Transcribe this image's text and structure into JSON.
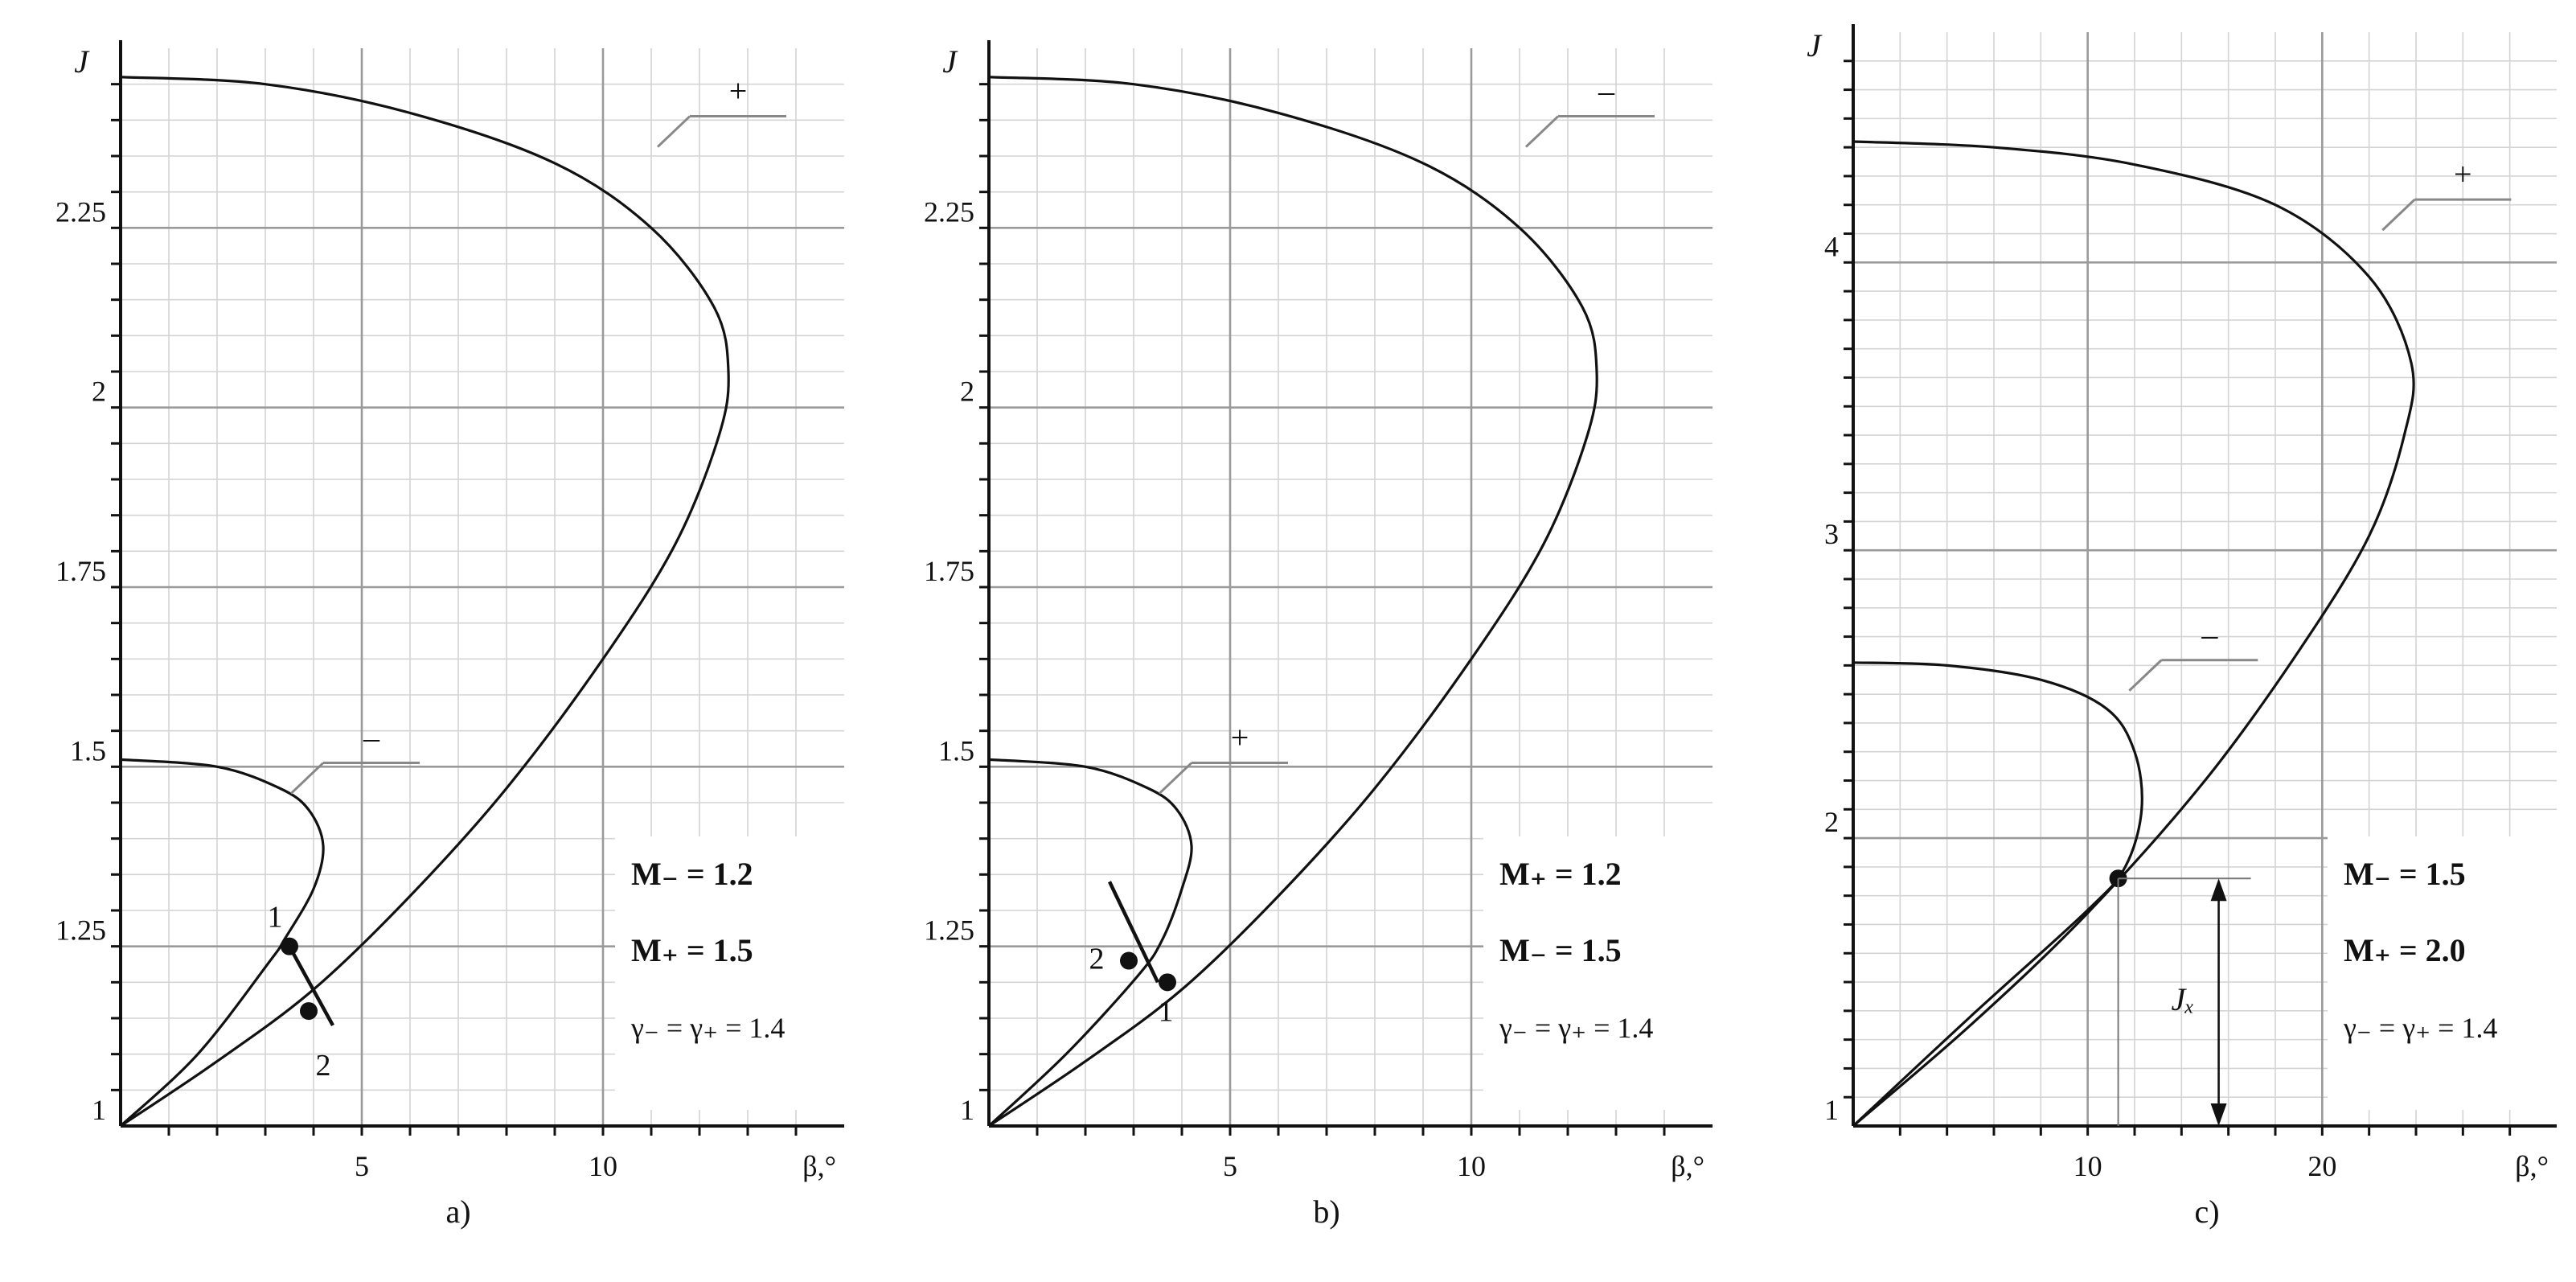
{
  "chart_data": [
    {
      "type": "line",
      "panel_label": "a)",
      "ylabel": "J",
      "xlabel": "β,°",
      "xlim": [
        0,
        15
      ],
      "ylim": [
        1,
        2.5
      ],
      "xticks": [
        5,
        10
      ],
      "yticks": [
        1,
        1.25,
        1.5,
        1.75,
        2,
        2.25
      ],
      "ytick_labels": [
        "1",
        "1.25",
        "1.5",
        "1.75",
        "2",
        "2.25"
      ],
      "series": [
        {
          "name": "+",
          "x": [
            0,
            2.0,
            4.0,
            6.0,
            8.0,
            10.0,
            11.5,
            12.4,
            12.6,
            12.3,
            11.0,
            9.0,
            6.0,
            3.0,
            0
          ],
          "y": [
            1.0,
            1.09,
            1.19,
            1.32,
            1.47,
            1.65,
            1.81,
            1.96,
            2.05,
            2.14,
            2.25,
            2.34,
            2.41,
            2.45,
            2.46
          ]
        },
        {
          "name": "–",
          "x": [
            0,
            1.6,
            3.1,
            3.4,
            4.0,
            4.2,
            3.9,
            3.3,
            2.0,
            0
          ],
          "y": [
            1.0,
            1.1,
            1.23,
            1.26,
            1.33,
            1.39,
            1.44,
            1.47,
            1.5,
            1.51
          ]
        },
        {
          "name": "",
          "x": [
            3.5,
            4.4
          ],
          "y": [
            1.25,
            1.14
          ]
        }
      ],
      "points": [
        {
          "label": "1",
          "x": 3.5,
          "y": 1.25
        },
        {
          "label": "2",
          "x": 3.9,
          "y": 1.16
        }
      ],
      "curve_tags": [
        {
          "text": "+",
          "x": 12.8,
          "y": 2.43
        },
        {
          "text": "–",
          "x": 5.2,
          "y": 1.53
        }
      ],
      "params": [
        "M₋ = 1.2",
        "M₊ = 1.5",
        "γ₋ = γ₊ = 1.4"
      ]
    },
    {
      "type": "line",
      "panel_label": "b)",
      "ylabel": "J",
      "xlabel": "β,°",
      "xlim": [
        0,
        15
      ],
      "ylim": [
        1,
        2.5
      ],
      "xticks": [
        5,
        10
      ],
      "yticks": [
        1,
        1.25,
        1.5,
        1.75,
        2,
        2.25
      ],
      "ytick_labels": [
        "1",
        "1.25",
        "1.5",
        "1.75",
        "2",
        "2.25"
      ],
      "series": [
        {
          "name": "–",
          "x": [
            0,
            2.0,
            4.0,
            6.0,
            8.0,
            10.0,
            11.5,
            12.4,
            12.6,
            12.3,
            11.0,
            9.0,
            6.0,
            3.0,
            0
          ],
          "y": [
            1.0,
            1.09,
            1.19,
            1.32,
            1.47,
            1.65,
            1.81,
            1.96,
            2.05,
            2.14,
            2.25,
            2.34,
            2.41,
            2.45,
            2.46
          ]
        },
        {
          "name": "+",
          "x": [
            0,
            1.6,
            3.1,
            3.6,
            4.0,
            4.2,
            3.9,
            3.3,
            2.0,
            0
          ],
          "y": [
            1.0,
            1.1,
            1.21,
            1.26,
            1.33,
            1.39,
            1.44,
            1.47,
            1.5,
            1.51
          ]
        },
        {
          "name": "",
          "x": [
            2.5,
            3.5
          ],
          "y": [
            1.34,
            1.2
          ]
        }
      ],
      "points": [
        {
          "label": "1",
          "x": 3.7,
          "y": 1.2
        },
        {
          "label": "2",
          "x": 2.9,
          "y": 1.23
        }
      ],
      "curve_tags": [
        {
          "text": "–",
          "x": 12.8,
          "y": 2.43
        },
        {
          "text": "+",
          "x": 5.2,
          "y": 1.53
        }
      ],
      "params": [
        "M₊ = 1.2",
        "M₋ = 1.5",
        "γ₋ = γ₊ = 1.4"
      ]
    },
    {
      "type": "line",
      "panel_label": "c)",
      "ylabel": "J",
      "xlabel": "β,°",
      "xlim": [
        0,
        30
      ],
      "ylim": [
        1,
        4.8
      ],
      "xticks": [
        10,
        20
      ],
      "yticks": [
        1,
        2,
        3,
        4
      ],
      "ytick_labels": [
        "1",
        "2",
        "3",
        "4"
      ],
      "series": [
        {
          "name": "+",
          "x": [
            0,
            5.0,
            10.0,
            15.0,
            19.0,
            22.0,
            23.5,
            23.8,
            22.0,
            18.0,
            12.0,
            6.0,
            0
          ],
          "y": [
            1.0,
            1.35,
            1.74,
            2.2,
            2.65,
            3.05,
            3.4,
            3.65,
            3.95,
            4.2,
            4.34,
            4.4,
            4.42
          ]
        },
        {
          "name": "–",
          "x": [
            0,
            5.0,
            10.0,
            11.6,
            12.3,
            12.0,
            10.8,
            8.0,
            4.0,
            0
          ],
          "y": [
            1.0,
            1.38,
            1.75,
            1.9,
            2.1,
            2.3,
            2.45,
            2.55,
            2.6,
            2.61
          ]
        }
      ],
      "points": [
        {
          "label": "",
          "x": 11.3,
          "y": 1.86
        }
      ],
      "jx_label": "Jₓ",
      "curve_tags": [
        {
          "text": "+",
          "x": 26.0,
          "y": 4.28
        },
        {
          "text": "–",
          "x": 15.2,
          "y": 2.68
        }
      ],
      "params": [
        "M₋ = 1.5",
        "M₊ = 2.0",
        "γ₋ = γ₊ = 1.4"
      ]
    }
  ]
}
